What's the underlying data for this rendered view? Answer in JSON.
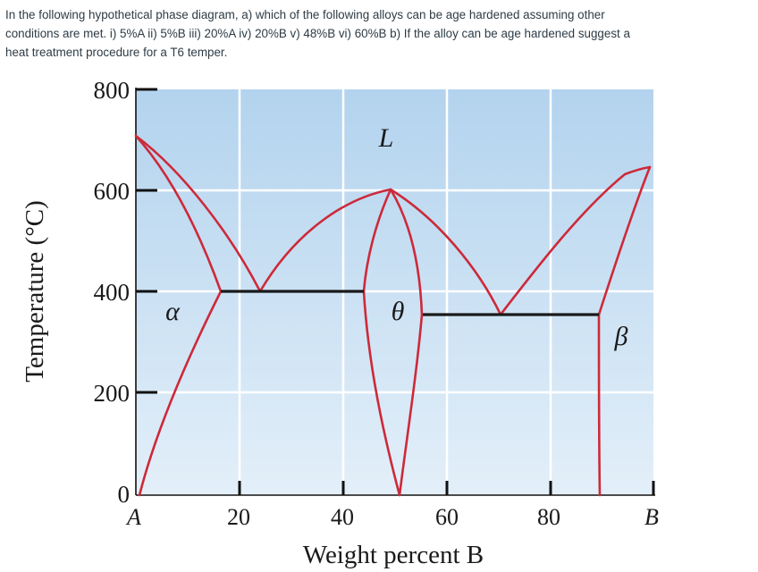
{
  "question": {
    "line1": "In the following hypothetical phase diagram, a) which of the following alloys can be age hardened assuming other",
    "line2": "conditions are met.  i) 5%A  ii) 5%B  iii) 20%A  iv) 20%B  v) 48%B vi) 60%B b) If the alloy can be age hardened suggest a",
    "line3": "heat treatment procedure for a T6 temper."
  },
  "diagram": {
    "y_axis_label": "Temperature (°C)",
    "x_axis_label": "Weight percent B",
    "y_ticks": [
      "800",
      "600",
      "400",
      "200",
      "0"
    ],
    "x_ticks": [
      "A",
      "20",
      "40",
      "60",
      "80",
      "B"
    ],
    "phases": {
      "liquid": "L",
      "alpha": "α",
      "theta": "θ",
      "beta": "β"
    },
    "colors": {
      "background_top": "#b3d3ee",
      "background_bottom": "#e3eff9",
      "phase_boundary": "#cc2a3a",
      "eutectic_line": "#1a1a1a",
      "gridline": "#ffffff"
    }
  }
}
